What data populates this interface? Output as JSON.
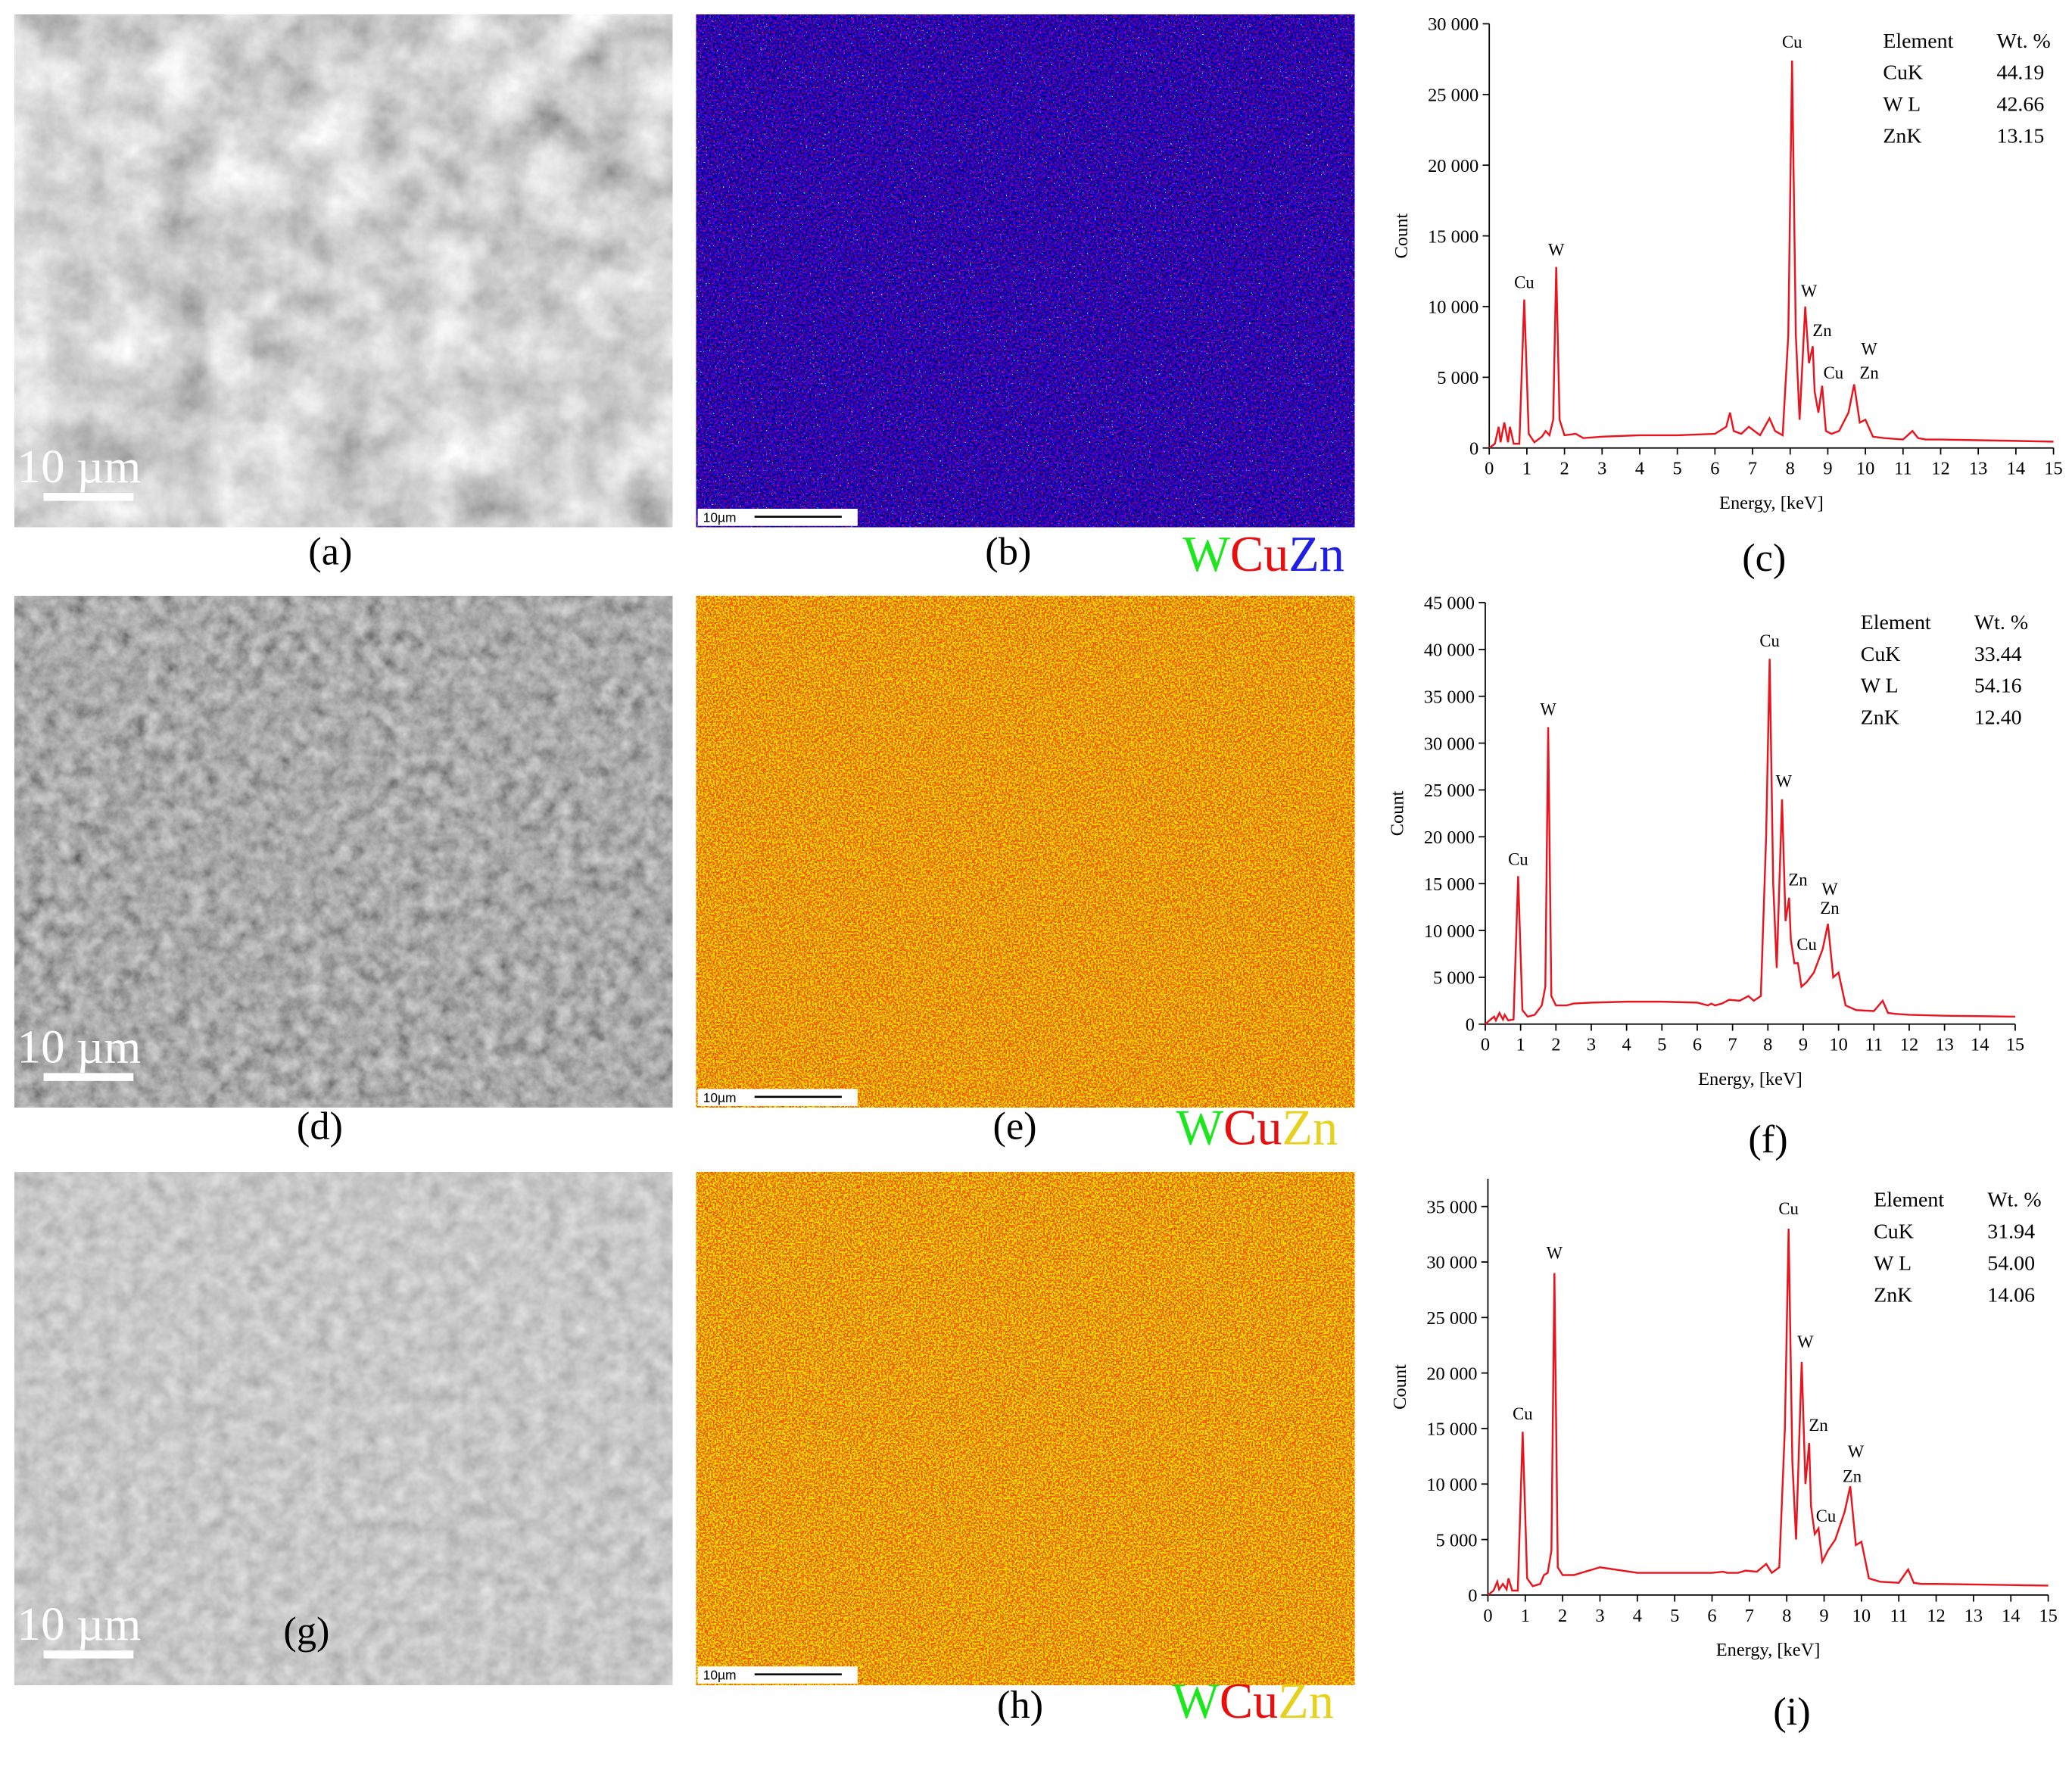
{
  "chart_data": [
    {
      "type": "line",
      "color": "#e8141e",
      "xlabel": "Energy, [keV]",
      "ylabel": "Count",
      "xlim": [
        0,
        15
      ],
      "xticks": [
        0,
        1,
        2,
        3,
        4,
        5,
        6,
        7,
        8,
        9,
        10,
        11,
        12,
        13,
        14,
        15
      ],
      "ylim": [
        0,
        30000
      ],
      "yticks": [
        0,
        {
          "value": 5000,
          "label": "5 000"
        },
        {
          "value": 10000,
          "label": "10 000"
        },
        {
          "value": 15000,
          "label": "15 000"
        },
        {
          "value": 20000,
          "label": "20 000"
        },
        {
          "value": 25000,
          "label": "25 000"
        },
        {
          "value": 30000,
          "label": "30 000"
        }
      ],
      "x": [
        0,
        0.15,
        0.25,
        0.3,
        0.4,
        0.5,
        0.55,
        0.65,
        0.8,
        0.93,
        1.05,
        1.2,
        1.4,
        1.5,
        1.6,
        1.7,
        1.78,
        1.87,
        2.0,
        2.3,
        2.5,
        3,
        4,
        5,
        6,
        6.3,
        6.4,
        6.5,
        6.7,
        6.9,
        7.2,
        7.45,
        7.6,
        7.8,
        7.95,
        8.05,
        8.15,
        8.25,
        8.4,
        8.5,
        8.6,
        8.65,
        8.75,
        8.85,
        8.95,
        9.1,
        9.3,
        9.55,
        9.7,
        9.85,
        10.0,
        10.2,
        10.5,
        11,
        11.25,
        11.4,
        11.6,
        12,
        13,
        14,
        15
      ],
      "values": [
        0,
        300,
        1500,
        400,
        1800,
        400,
        1500,
        300,
        300,
        10500,
        1000,
        400,
        800,
        1200,
        900,
        2000,
        12800,
        2000,
        900,
        1000,
        700,
        800,
        900,
        900,
        1000,
        1500,
        2500,
        1200,
        1000,
        1500,
        900,
        2100,
        1200,
        900,
        8000,
        27400,
        8000,
        2000,
        10000,
        6000,
        7200,
        4000,
        2500,
        4400,
        1200,
        1000,
        1200,
        2500,
        4500,
        1800,
        2000,
        800,
        700,
        600,
        1200,
        700,
        600,
        600,
        550,
        500,
        450
      ],
      "annotations": [
        {
          "text": "Cu",
          "x": 0.93,
          "y": 11300
        },
        {
          "text": "W",
          "x": 1.78,
          "y": 13600
        },
        {
          "text": "Cu",
          "x": 8.05,
          "y": 28300
        },
        {
          "text": "W",
          "x": 8.5,
          "y": 10700
        },
        {
          "text": "Zn",
          "x": 8.85,
          "y": 7900
        },
        {
          "text": "Cu",
          "x": 9.15,
          "y": 4900
        },
        {
          "text": "W",
          "x": 10.1,
          "y": 6600
        },
        {
          "text": "Zn",
          "x": 10.1,
          "y": 4900
        }
      ],
      "table": {
        "header": [
          "Element",
          "Wt. %"
        ],
        "rows": [
          [
            "CuK",
            "44.19"
          ],
          [
            "W L",
            "42.66"
          ],
          [
            "ZnK",
            "13.15"
          ]
        ]
      }
    },
    {
      "type": "line",
      "color": "#e8141e",
      "xlabel": "Energy, [keV]",
      "ylabel": "Count",
      "xlim": [
        0,
        15
      ],
      "xticks": [
        0,
        1,
        2,
        3,
        4,
        5,
        6,
        7,
        8,
        9,
        10,
        11,
        12,
        13,
        14,
        15
      ],
      "ylim": [
        0,
        45000
      ],
      "yticks": [
        0,
        {
          "value": 5000,
          "label": "5 000"
        },
        {
          "value": 10000,
          "label": "10 000"
        },
        {
          "value": 15000,
          "label": "15 000"
        },
        {
          "value": 20000,
          "label": "20 000"
        },
        {
          "value": 25000,
          "label": "25 000"
        },
        {
          "value": 30000,
          "label": "30 000"
        },
        {
          "value": 35000,
          "label": "35 000"
        },
        {
          "value": 40000,
          "label": "40 000"
        },
        {
          "value": 45000,
          "label": "45 000"
        }
      ],
      "x": [
        0,
        0.15,
        0.25,
        0.3,
        0.4,
        0.5,
        0.55,
        0.65,
        0.8,
        0.93,
        1.05,
        1.2,
        1.4,
        1.5,
        1.6,
        1.7,
        1.78,
        1.87,
        2.0,
        2.3,
        2.5,
        3,
        4,
        5,
        6,
        6.3,
        6.4,
        6.5,
        6.7,
        6.9,
        7.2,
        7.45,
        7.6,
        7.8,
        7.95,
        8.05,
        8.15,
        8.25,
        8.4,
        8.5,
        8.6,
        8.65,
        8.75,
        8.85,
        8.95,
        9.1,
        9.3,
        9.55,
        9.7,
        9.85,
        10.0,
        10.2,
        10.5,
        11,
        11.25,
        11.4,
        11.6,
        12,
        13,
        14,
        15
      ],
      "values": [
        0,
        500,
        800,
        400,
        1200,
        500,
        1000,
        400,
        500,
        15800,
        1500,
        800,
        1000,
        1500,
        2000,
        4000,
        31700,
        3000,
        2000,
        2000,
        2200,
        2300,
        2400,
        2400,
        2300,
        2000,
        2200,
        2000,
        2200,
        2600,
        2500,
        3000,
        2500,
        3000,
        20000,
        39000,
        15000,
        6000,
        24000,
        11000,
        13500,
        9000,
        6500,
        6500,
        4000,
        4500,
        5500,
        8000,
        10700,
        5000,
        5500,
        2000,
        1500,
        1400,
        2500,
        1200,
        1100,
        1000,
        900,
        850,
        800
      ],
      "annotations": [
        {
          "text": "Cu",
          "x": 0.93,
          "y": 17000
        },
        {
          "text": "W",
          "x": 1.78,
          "y": 33000
        },
        {
          "text": "Cu",
          "x": 8.05,
          "y": 40300
        },
        {
          "text": "W",
          "x": 8.45,
          "y": 25300
        },
        {
          "text": "Zn",
          "x": 8.85,
          "y": 14800
        },
        {
          "text": "Cu",
          "x": 9.1,
          "y": 7900
        },
        {
          "text": "W",
          "x": 9.75,
          "y": 13800
        },
        {
          "text": "Zn",
          "x": 9.75,
          "y": 11800
        }
      ],
      "table": {
        "header": [
          "Element",
          "Wt. %"
        ],
        "rows": [
          [
            "CuK",
            "33.44"
          ],
          [
            "W L",
            "54.16"
          ],
          [
            "ZnK",
            "12.40"
          ]
        ]
      }
    },
    {
      "type": "line",
      "color": "#e8141e",
      "xlabel": "Energy, [keV]",
      "ylabel": "Count",
      "xlim": [
        0,
        15
      ],
      "xticks": [
        0,
        1,
        2,
        3,
        4,
        5,
        6,
        7,
        8,
        9,
        10,
        11,
        12,
        13,
        14,
        15
      ],
      "ylim": [
        0,
        37500
      ],
      "yticks": [
        0,
        {
          "value": 5000,
          "label": "5 000"
        },
        {
          "value": 10000,
          "label": "10 000"
        },
        {
          "value": 15000,
          "label": "15 000"
        },
        {
          "value": 20000,
          "label": "20 000"
        },
        {
          "value": 25000,
          "label": "25 000"
        },
        {
          "value": 30000,
          "label": "30 000"
        },
        {
          "value": 35000,
          "label": "35 000"
        }
      ],
      "x": [
        0,
        0.15,
        0.25,
        0.3,
        0.4,
        0.5,
        0.55,
        0.65,
        0.8,
        0.93,
        1.05,
        1.2,
        1.4,
        1.5,
        1.6,
        1.7,
        1.78,
        1.87,
        2.0,
        2.3,
        2.5,
        3,
        4,
        5,
        6,
        6.3,
        6.4,
        6.5,
        6.7,
        6.9,
        7.2,
        7.45,
        7.6,
        7.8,
        7.95,
        8.05,
        8.15,
        8.25,
        8.4,
        8.5,
        8.6,
        8.65,
        8.75,
        8.85,
        8.95,
        9.1,
        9.3,
        9.55,
        9.7,
        9.85,
        10.0,
        10.2,
        10.5,
        11,
        11.25,
        11.4,
        11.6,
        12,
        13,
        14,
        15
      ],
      "values": [
        0,
        400,
        1200,
        500,
        1000,
        500,
        1500,
        400,
        400,
        14700,
        1500,
        800,
        1000,
        1800,
        2000,
        4000,
        29000,
        2500,
        1800,
        1800,
        2000,
        2500,
        2000,
        2000,
        2000,
        2100,
        2000,
        2000,
        2000,
        2200,
        2100,
        2800,
        2000,
        2500,
        15000,
        33000,
        12000,
        5000,
        21000,
        10000,
        13700,
        8000,
        5500,
        6000,
        3000,
        4000,
        5000,
        7500,
        9800,
        4500,
        4800,
        1500,
        1200,
        1100,
        2300,
        1100,
        1000,
        1000,
        950,
        900,
        850
      ],
      "annotations": [
        {
          "text": "Cu",
          "x": 0.93,
          "y": 15800
        },
        {
          "text": "W",
          "x": 1.78,
          "y": 30300
        },
        {
          "text": "Cu",
          "x": 8.05,
          "y": 34300
        },
        {
          "text": "W",
          "x": 8.5,
          "y": 22300
        },
        {
          "text": "Zn",
          "x": 8.85,
          "y": 14800
        },
        {
          "text": "Cu",
          "x": 9.05,
          "y": 6600
        },
        {
          "text": "W",
          "x": 9.85,
          "y": 12400
        },
        {
          "text": "Zn",
          "x": 9.75,
          "y": 10200
        }
      ],
      "table": {
        "header": [
          "Element",
          "Wt. %"
        ],
        "rows": [
          [
            "CuK",
            "31.94"
          ],
          [
            "W L",
            "54.00"
          ],
          [
            "ZnK",
            "14.06"
          ]
        ]
      }
    }
  ],
  "panels": [
    {
      "sem_label": "(a)",
      "sem_scale": "10 µm",
      "map_label": "(b)",
      "map_scale": "10µm",
      "legend": [
        {
          "text": "W",
          "color": "#1ee61e"
        },
        {
          "text": "Cu",
          "color": "#e60f0f"
        },
        {
          "text": "Zn",
          "color": "#1e1ee6"
        }
      ],
      "chart_label": "(c)"
    },
    {
      "sem_label": "(d)",
      "sem_scale": "10 µm",
      "map_label": "(e)",
      "map_scale": "10µm",
      "legend": [
        {
          "text": "W",
          "color": "#1ee61e"
        },
        {
          "text": "Cu",
          "color": "#e60f0f"
        },
        {
          "text": "Zn",
          "color": "#e6d21e"
        }
      ],
      "chart_label": "(f)"
    },
    {
      "sem_label": "(g)",
      "sem_scale": "10 µm",
      "map_label": "(h)",
      "map_scale": "10µm",
      "legend": [
        {
          "text": "W",
          "color": "#1ee61e"
        },
        {
          "text": "Cu",
          "color": "#e60f0f"
        },
        {
          "text": "Zn",
          "color": "#e6d21e"
        }
      ],
      "chart_label": "(i)"
    }
  ]
}
